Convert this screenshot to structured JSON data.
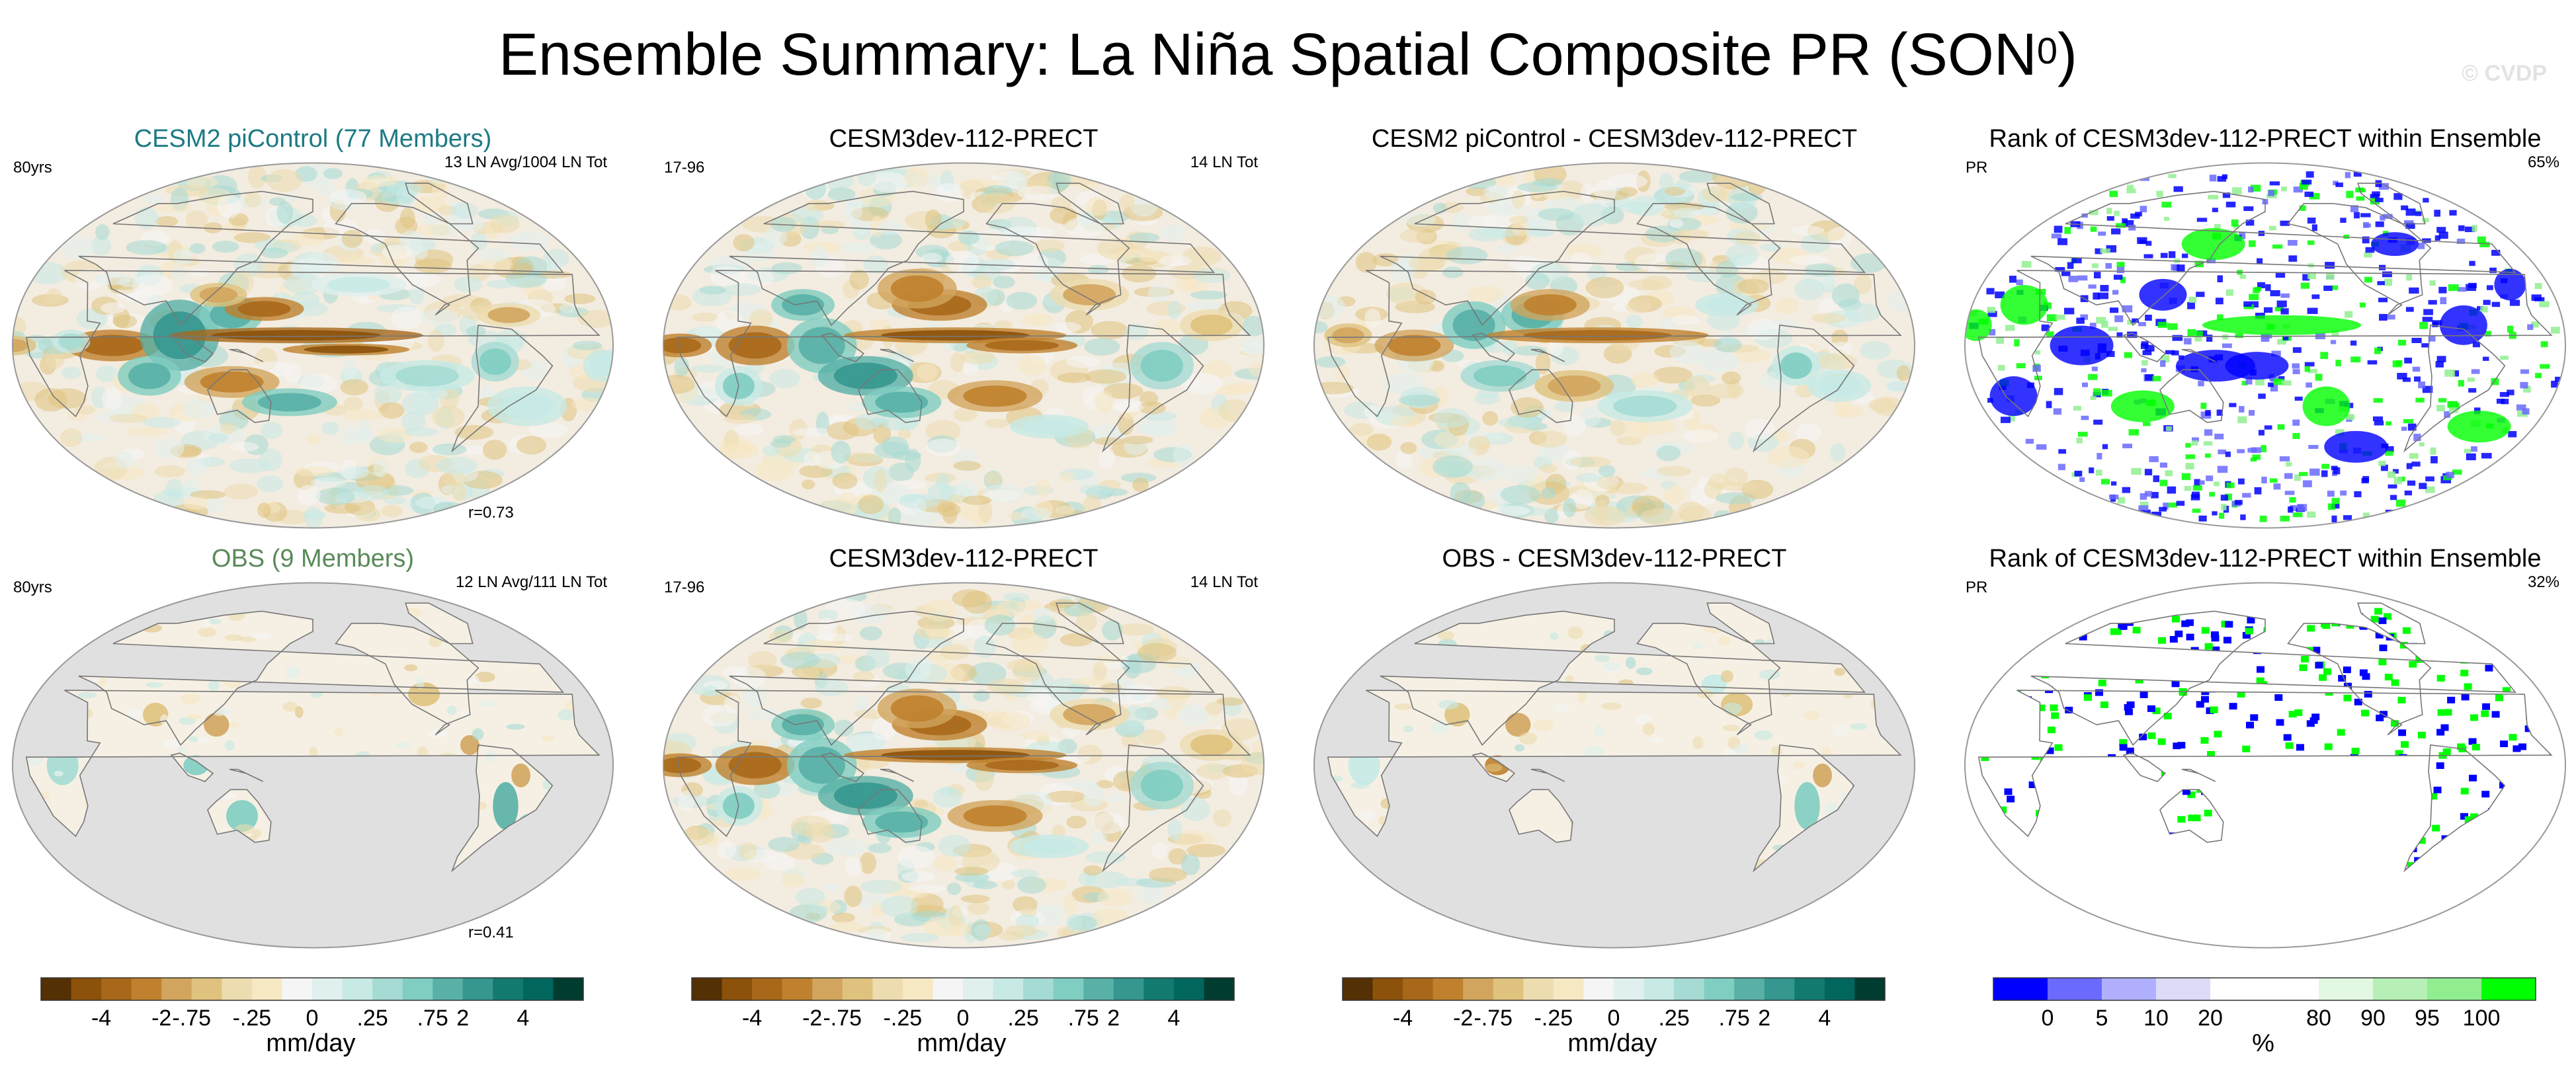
{
  "title": {
    "main": "Ensemble Summary: La Niña Spatial Composite PR (SON",
    "sup": "0",
    "close": ")"
  },
  "watermark": "© CVDP",
  "panels": [
    {
      "title": "CESM2 piControl (77 Members)",
      "title_color": "#1d7a84",
      "left": "80yrs",
      "right": "13 LN Avg/1004 LN Tot",
      "bottom": "r=0.73",
      "pattern": "ens",
      "land_only": false
    },
    {
      "title": "CESM3dev-112-PRECT",
      "title_color": "#000000",
      "left": "17-96",
      "right": "14 LN Tot",
      "bottom": "",
      "pattern": "model",
      "land_only": false
    },
    {
      "title": "CESM2 piControl - CESM3dev-112-PRECT",
      "title_color": "#000000",
      "left": "",
      "right": "",
      "bottom": "",
      "pattern": "diff",
      "land_only": false
    },
    {
      "title": "Rank of CESM3dev-112-PRECT within Ensemble",
      "title_color": "#000000",
      "left": "PR",
      "right": "65%",
      "bottom": "",
      "pattern": "rank",
      "land_only": false
    },
    {
      "title": "OBS (9 Members)",
      "title_color": "#5a8a5a",
      "left": "80yrs",
      "right": "12 LN Avg/111 LN Tot",
      "bottom": "r=0.41",
      "pattern": "obs",
      "land_only": true
    },
    {
      "title": "CESM3dev-112-PRECT",
      "title_color": "#000000",
      "left": "17-96",
      "right": "14 LN Tot",
      "bottom": "",
      "pattern": "model",
      "land_only": false
    },
    {
      "title": "OBS - CESM3dev-112-PRECT",
      "title_color": "#000000",
      "left": "",
      "right": "",
      "bottom": "",
      "pattern": "obsdiff",
      "land_only": true
    },
    {
      "title": "Rank of CESM3dev-112-PRECT within Ensemble",
      "title_color": "#000000",
      "left": "PR",
      "right": "32%",
      "bottom": "",
      "pattern": "rankobs",
      "land_only": true
    }
  ],
  "colorbars": [
    {
      "unit": "mm/day",
      "colors": [
        "#543005",
        "#8c510a",
        "#a8681a",
        "#bf812d",
        "#d2a55e",
        "#dfc27d",
        "#ecdcaf",
        "#f6e8c3",
        "#f5f5f5",
        "#e0f0ee",
        "#c7eae5",
        "#a5dbd3",
        "#80cdc1",
        "#58b0a6",
        "#35978f",
        "#137a70",
        "#01665e",
        "#003c30"
      ],
      "labels": [
        "-4",
        "-2",
        "-.75",
        "-.25",
        "0",
        ".25",
        ".75",
        "2",
        "4"
      ]
    },
    {
      "unit": "mm/day",
      "colors": [
        "#543005",
        "#8c510a",
        "#a8681a",
        "#bf812d",
        "#d2a55e",
        "#dfc27d",
        "#ecdcaf",
        "#f6e8c3",
        "#f5f5f5",
        "#e0f0ee",
        "#c7eae5",
        "#a5dbd3",
        "#80cdc1",
        "#58b0a6",
        "#35978f",
        "#137a70",
        "#01665e",
        "#003c30"
      ],
      "labels": [
        "-4",
        "-2",
        "-.75",
        "-.25",
        "0",
        ".25",
        ".75",
        "2",
        "4"
      ]
    },
    {
      "unit": "mm/day",
      "colors": [
        "#543005",
        "#8c510a",
        "#a8681a",
        "#bf812d",
        "#d2a55e",
        "#dfc27d",
        "#ecdcaf",
        "#f6e8c3",
        "#f5f5f5",
        "#e0f0ee",
        "#c7eae5",
        "#a5dbd3",
        "#80cdc1",
        "#58b0a6",
        "#35978f",
        "#137a70",
        "#01665e",
        "#003c30"
      ],
      "labels": [
        "-4",
        "-2",
        "-.75",
        "-.25",
        "0",
        ".25",
        ".75",
        "2",
        "4"
      ]
    },
    {
      "unit": "%",
      "colors": [
        "#0000ff",
        "#6a6aff",
        "#b0b0ff",
        "#dcdcf8",
        "#ffffff",
        "#ffffff",
        "#e2f8e2",
        "#b6f0b6",
        "#90ee90",
        "#00ff00"
      ],
      "labels": [
        "0",
        "5",
        "10",
        "20",
        "80",
        "90",
        "95",
        "100"
      ]
    }
  ],
  "colors": {
    "land_gray": "#e0e0e0",
    "coast": "#777777",
    "outline": "#999999"
  }
}
